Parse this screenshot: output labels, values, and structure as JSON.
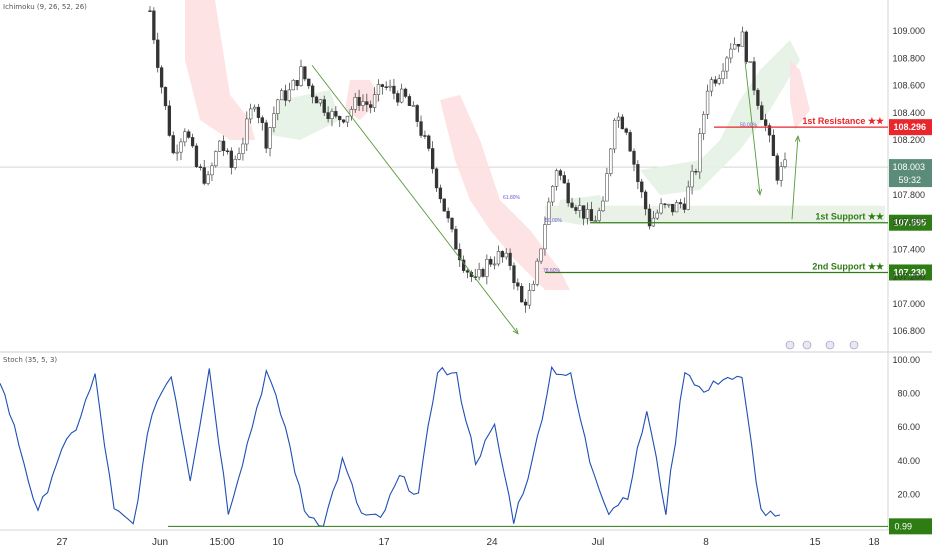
{
  "indicators": {
    "top": "Ichimoku (9, 26, 52, 26)",
    "bottom": "Stoch (35, 5, 3)"
  },
  "price_axis": {
    "ticks": [
      "109.000",
      "108.800",
      "108.600",
      "108.400",
      "108.200",
      "108.000",
      "107.800",
      "107.600",
      "107.400",
      "107.200",
      "107.000",
      "106.800"
    ],
    "current_price": "108.003",
    "countdown": "59:32"
  },
  "stoch_axis": {
    "ticks": [
      "100.00",
      "80.00",
      "60.00",
      "40.00",
      "20.00"
    ],
    "current_value": "0.99"
  },
  "time_axis": {
    "ticks": [
      "27",
      "Jun",
      "15:00",
      "10",
      "17",
      "24",
      "Jul",
      "8",
      "15",
      "18"
    ]
  },
  "levels": [
    {
      "label": "1st Resistance ★★",
      "value": "108.296",
      "color": "#e8262b"
    },
    {
      "label": "1st Support ★★",
      "value": "107.595",
      "color": "#2e7d14"
    },
    {
      "label": "2nd Support ★★",
      "value": "107.230",
      "color": "#2e7d14"
    }
  ],
  "fib_labels": [
    "61.80%",
    "50.00%",
    "78.60%",
    "50.00%"
  ],
  "colors": {
    "up": "#26a69a",
    "down": "#ef5350",
    "stoch": "#1f4fb4",
    "support": "#2e7d14",
    "resistance": "#e8262b"
  },
  "chart_data": {
    "type": "candlestick",
    "y_range": [
      106.72,
      109.17
    ],
    "stoch_range": [
      0,
      100
    ],
    "description_series": [
      {
        "name": "price",
        "points": [
          [
            0,
            109.15
          ],
          [
            3,
            108.6
          ],
          [
            6,
            108.1
          ],
          [
            9,
            108.3
          ],
          [
            12,
            108.0
          ],
          [
            15,
            107.9
          ],
          [
            18,
            108.2
          ],
          [
            21,
            108.0
          ],
          [
            24,
            108.2
          ],
          [
            27,
            108.5
          ],
          [
            30,
            108.2
          ],
          [
            33,
            108.5
          ],
          [
            36,
            108.55
          ],
          [
            39,
            108.7
          ],
          [
            42,
            108.55
          ],
          [
            45,
            108.45
          ],
          [
            48,
            108.35
          ],
          [
            51,
            108.4
          ],
          [
            54,
            108.5
          ],
          [
            57,
            108.45
          ],
          [
            60,
            108.6
          ],
          [
            63,
            108.55
          ],
          [
            66,
            108.5
          ],
          [
            69,
            108.35
          ],
          [
            72,
            108.1
          ],
          [
            75,
            107.8
          ],
          [
            78,
            107.5
          ],
          [
            81,
            107.3
          ],
          [
            84,
            107.15
          ],
          [
            87,
            107.3
          ],
          [
            90,
            107.35
          ],
          [
            93,
            107.3
          ],
          [
            96,
            107.0
          ],
          [
            99,
            107.1
          ],
          [
            102,
            107.6
          ],
          [
            105,
            108.0
          ],
          [
            108,
            107.8
          ],
          [
            111,
            107.7
          ],
          [
            114,
            107.6
          ],
          [
            117,
            107.7
          ],
          [
            120,
            108.4
          ],
          [
            123,
            108.3
          ],
          [
            126,
            107.9
          ],
          [
            129,
            107.6
          ],
          [
            132,
            107.7
          ],
          [
            135,
            107.7
          ],
          [
            138,
            107.75
          ],
          [
            141,
            108.0
          ],
          [
            144,
            108.6
          ],
          [
            147,
            108.7
          ],
          [
            150,
            108.9
          ],
          [
            153,
            108.95
          ],
          [
            156,
            108.6
          ],
          [
            159,
            108.3
          ],
          [
            162,
            107.95
          ],
          [
            164,
            108.0
          ]
        ]
      },
      {
        "name": "stoch",
        "points": [
          [
            0,
            88
          ],
          [
            4,
            50
          ],
          [
            8,
            8
          ],
          [
            12,
            40
          ],
          [
            16,
            60
          ],
          [
            20,
            90
          ],
          [
            24,
            10
          ],
          [
            28,
            2
          ],
          [
            32,
            70
          ],
          [
            36,
            92
          ],
          [
            40,
            30
          ],
          [
            44,
            95
          ],
          [
            48,
            10
          ],
          [
            52,
            50
          ],
          [
            56,
            93
          ],
          [
            60,
            60
          ],
          [
            64,
            10
          ],
          [
            68,
            2
          ],
          [
            72,
            40
          ],
          [
            76,
            8
          ],
          [
            80,
            5
          ],
          [
            84,
            30
          ],
          [
            88,
            20
          ],
          [
            92,
            95
          ],
          [
            96,
            90
          ],
          [
            100,
            40
          ],
          [
            104,
            60
          ],
          [
            108,
            5
          ],
          [
            112,
            40
          ],
          [
            116,
            95
          ],
          [
            120,
            90
          ],
          [
            124,
            40
          ],
          [
            128,
            10
          ],
          [
            132,
            20
          ],
          [
            136,
            70
          ],
          [
            140,
            10
          ],
          [
            144,
            95
          ],
          [
            148,
            80
          ],
          [
            152,
            90
          ],
          [
            156,
            88
          ],
          [
            160,
            10
          ],
          [
            164,
            5
          ]
        ]
      }
    ]
  }
}
